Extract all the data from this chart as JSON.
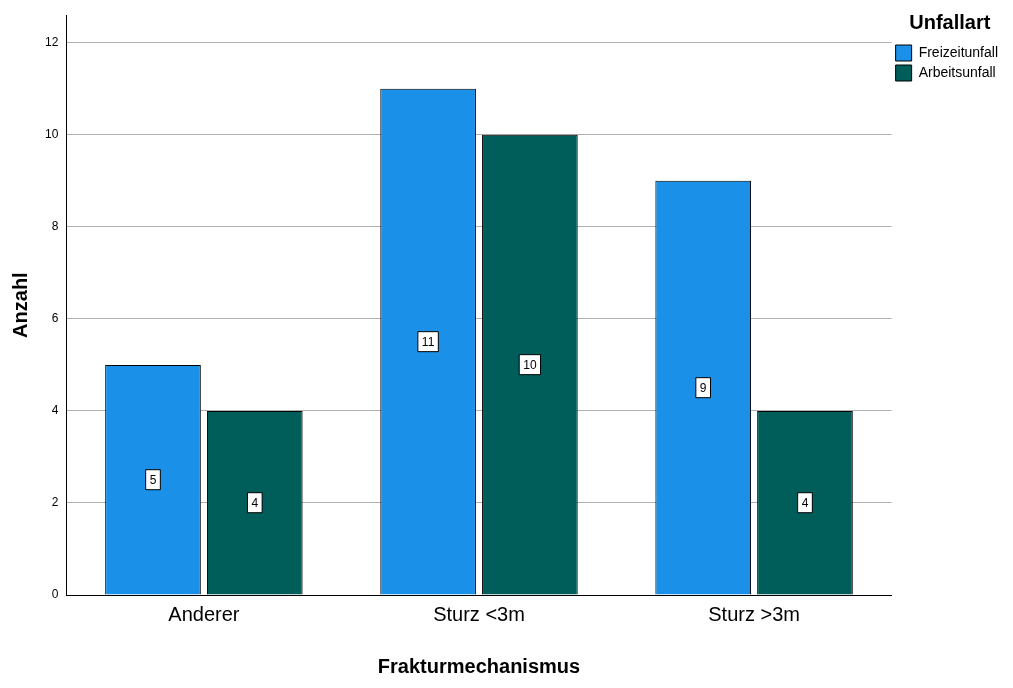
{
  "chart_data": {
    "type": "bar",
    "xlabel": "Frakturmechanismus",
    "ylabel": "Anzahl",
    "legend_title": "Unfallart",
    "categories": [
      "Anderer",
      "Sturz <3m",
      "Sturz >3m"
    ],
    "series": [
      {
        "name": "Freizeitunfall",
        "color": "#1a90e8",
        "values": [
          5,
          11,
          9
        ]
      },
      {
        "name": "Arbeitsunfall",
        "color": "#005e5a",
        "values": [
          4,
          10,
          4
        ]
      }
    ],
    "ylim": [
      0,
      12.6
    ],
    "yticks": [
      0,
      2,
      4,
      6,
      8,
      10,
      12
    ],
    "grid": "y",
    "legend": "top right",
    "data_labels": true
  }
}
